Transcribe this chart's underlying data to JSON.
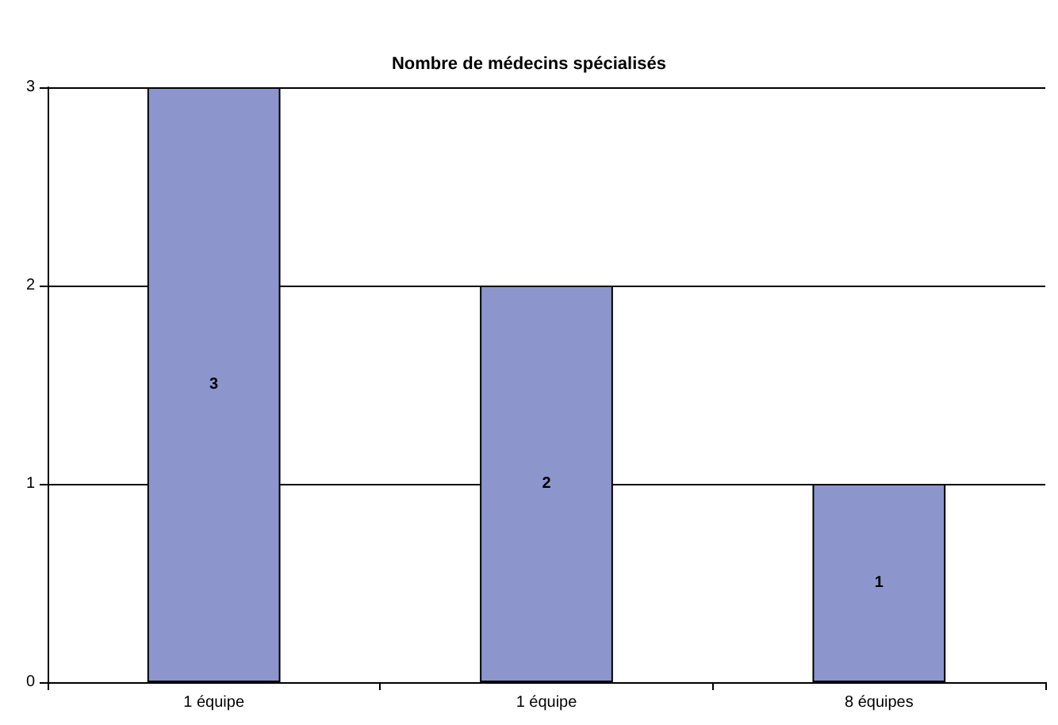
{
  "chart_data": {
    "type": "bar",
    "title": "Nombre de médecins spécialisés",
    "categories": [
      "1 équipe",
      "1 équipe",
      "8 équipes"
    ],
    "values": [
      3,
      2,
      1
    ],
    "color": "#8c96cc",
    "ylim": [
      0,
      3
    ],
    "yticks": [
      0,
      1,
      2,
      3
    ],
    "grid": "y",
    "data_labels": true
  }
}
